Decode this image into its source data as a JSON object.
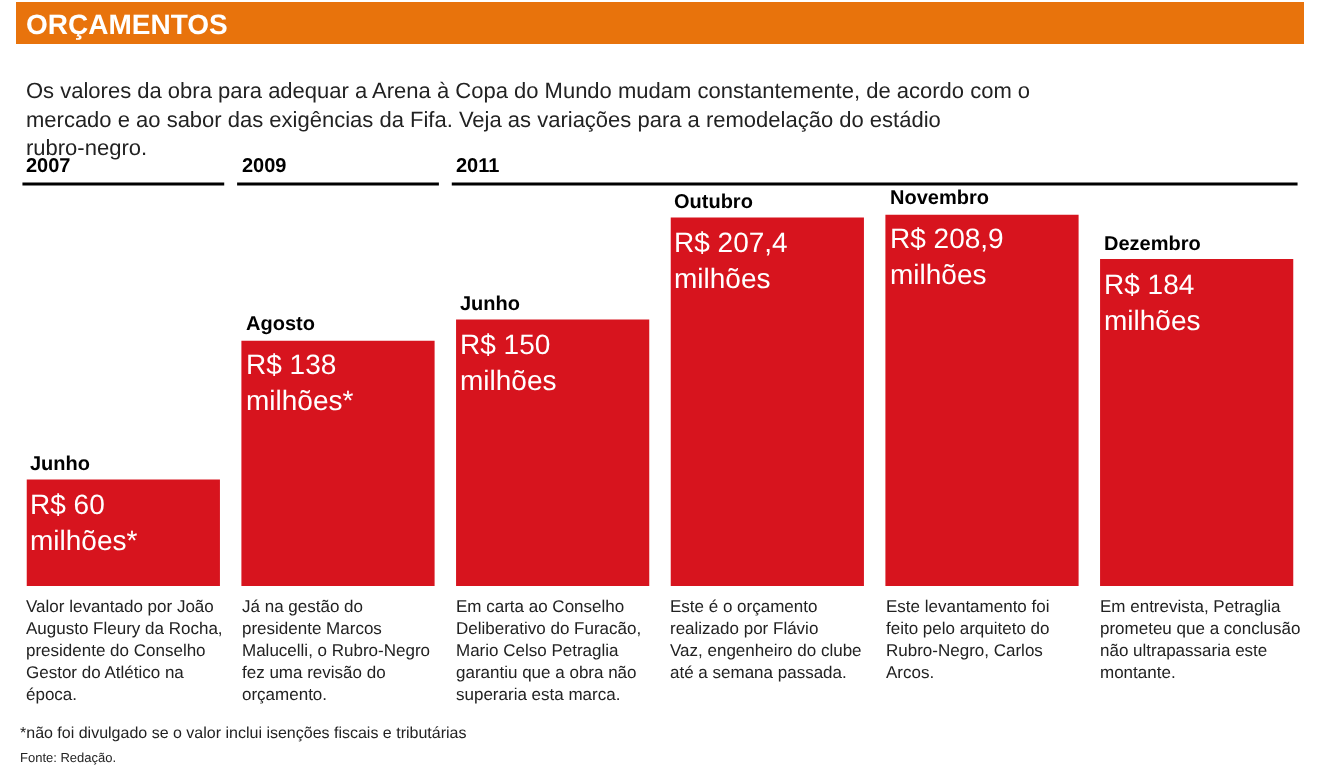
{
  "chart_data": {
    "type": "bar",
    "title": "ORÇAMENTOS",
    "subtitle": "Os valores da obra para adequar a Arena à Copa do Mundo mudam constantemente, de acordo com o mercado e ao sabor das exigências da Fifa. Veja as variações para a remodelação do estádio rubro-negro.",
    "categories": [
      "Junho",
      "Agosto",
      "Junho",
      "Outubro",
      "Novembro",
      "Dezembro"
    ],
    "values": [
      60,
      138,
      150,
      207.4,
      208.9,
      184
    ],
    "value_labels": [
      "R$ 60 milhões*",
      "R$ 138 milhões*",
      "R$ 150 milhões",
      "R$ 207,4 milhões",
      "R$ 208,9 milhões",
      "R$ 184 milhões"
    ],
    "color": "#d7141e",
    "tick_labels": false,
    "annotations": [
      "2007",
      "2009",
      "2011",
      "Valor levantado por João Augusto Fleury da Rocha, presidente do Conselho Gestor do Atlético na época.",
      "Já na gestão do presidente Marcos Malucelli, o Rubro-Negro fez uma revisão do orçamento.",
      "Em carta ao Conselho Deliberativo do Furacão, Mario Celso Petraglia garantiu que a obra não superaria esta marca.",
      "Este é o orçamento realizado por Flávio Vaz, engenheiro do clube até a semana passada.",
      "Este levantamento foi feito pelo arquiteto do Rubro-Negro, Carlos Arcos.",
      "Em entrevista, Petraglia prometeu que a conclusão não ultrapassaria este montante.",
      "*não foi divulgado se o valor inclui isenções fiscais e tributárias",
      "Fonte: Redação."
    ]
  }
}
